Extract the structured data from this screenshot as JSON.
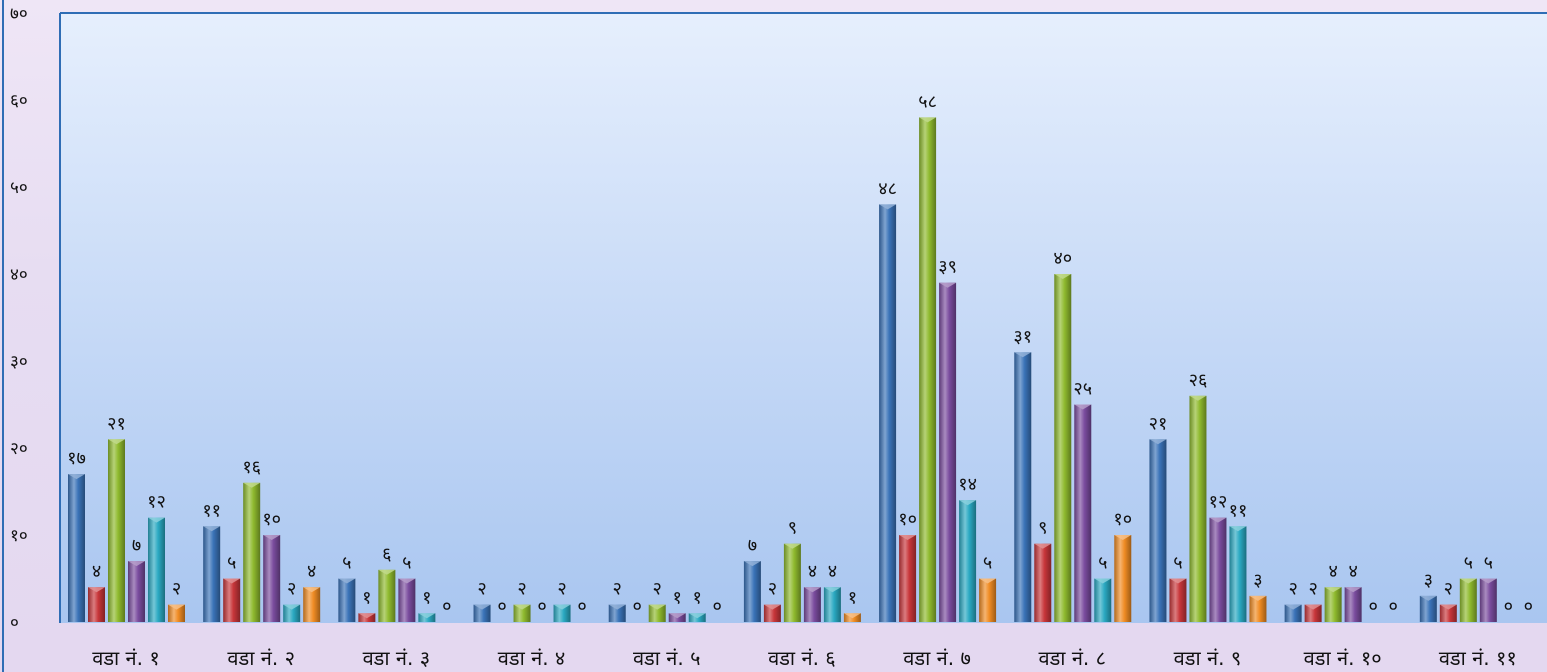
{
  "chart_data": {
    "type": "bar",
    "categories": [
      "वडा नं. १",
      "वडा नं. २",
      "वडा नं. ३",
      "वडा नं. ४",
      "वडा नं. ५",
      "वडा नं. ६",
      "वडा नं. ७",
      "वडा नं. ८",
      "वडा नं. ९",
      "वडा नं. १०",
      "वडा नं. ११"
    ],
    "series": [
      {
        "values": [
          17,
          11,
          5,
          2,
          2,
          7,
          48,
          31,
          21,
          2,
          3
        ],
        "color": "#3a73b8"
      },
      {
        "values": [
          4,
          5,
          1,
          0,
          0,
          2,
          10,
          9,
          5,
          2,
          2
        ],
        "color": "#c8363a"
      },
      {
        "values": [
          21,
          16,
          6,
          2,
          2,
          9,
          58,
          40,
          26,
          4,
          5
        ],
        "color": "#8fba2e"
      },
      {
        "values": [
          7,
          10,
          5,
          0,
          1,
          4,
          39,
          25,
          12,
          4,
          5
        ],
        "color": "#7a4c9e"
      },
      {
        "values": [
          12,
          2,
          1,
          2,
          1,
          4,
          14,
          5,
          11,
          0,
          0
        ],
        "color": "#2aa9c2"
      },
      {
        "values": [
          2,
          4,
          0,
          0,
          0,
          1,
          5,
          10,
          3,
          0,
          0
        ],
        "color": "#f08c24"
      }
    ],
    "data_labels": [
      [
        "१७",
        "११",
        "५",
        "२",
        "२",
        "७",
        "४८",
        "३१",
        "२१",
        "२",
        "३"
      ],
      [
        "४",
        "५",
        "१",
        "०",
        "०",
        "२",
        "१०",
        "९",
        "५",
        "२",
        "२"
      ],
      [
        "२१",
        "१६",
        "६",
        "२",
        "२",
        "९",
        "५८",
        "४०",
        "२६",
        "४",
        "५"
      ],
      [
        "७",
        "१०",
        "५",
        "०",
        "१",
        "४",
        "३९",
        "२५",
        "१२",
        "४",
        "५"
      ],
      [
        "१२",
        "२",
        "१",
        "२",
        "१",
        "४",
        "१४",
        "५",
        "११",
        "०",
        "०"
      ],
      [
        "२",
        "४",
        "०",
        "०",
        "०",
        "१",
        "५",
        "१०",
        "३",
        "०",
        "०"
      ]
    ],
    "y_ticks": [
      0,
      10,
      20,
      30,
      40,
      50,
      60,
      70
    ],
    "y_tick_labels": [
      "०",
      "१०",
      "२०",
      "३०",
      "४०",
      "५०",
      "६०",
      "७०"
    ],
    "ylim": [
      0,
      70
    ],
    "title": "",
    "xlabel": "",
    "ylabel": "",
    "grid": false,
    "legend": "none"
  }
}
